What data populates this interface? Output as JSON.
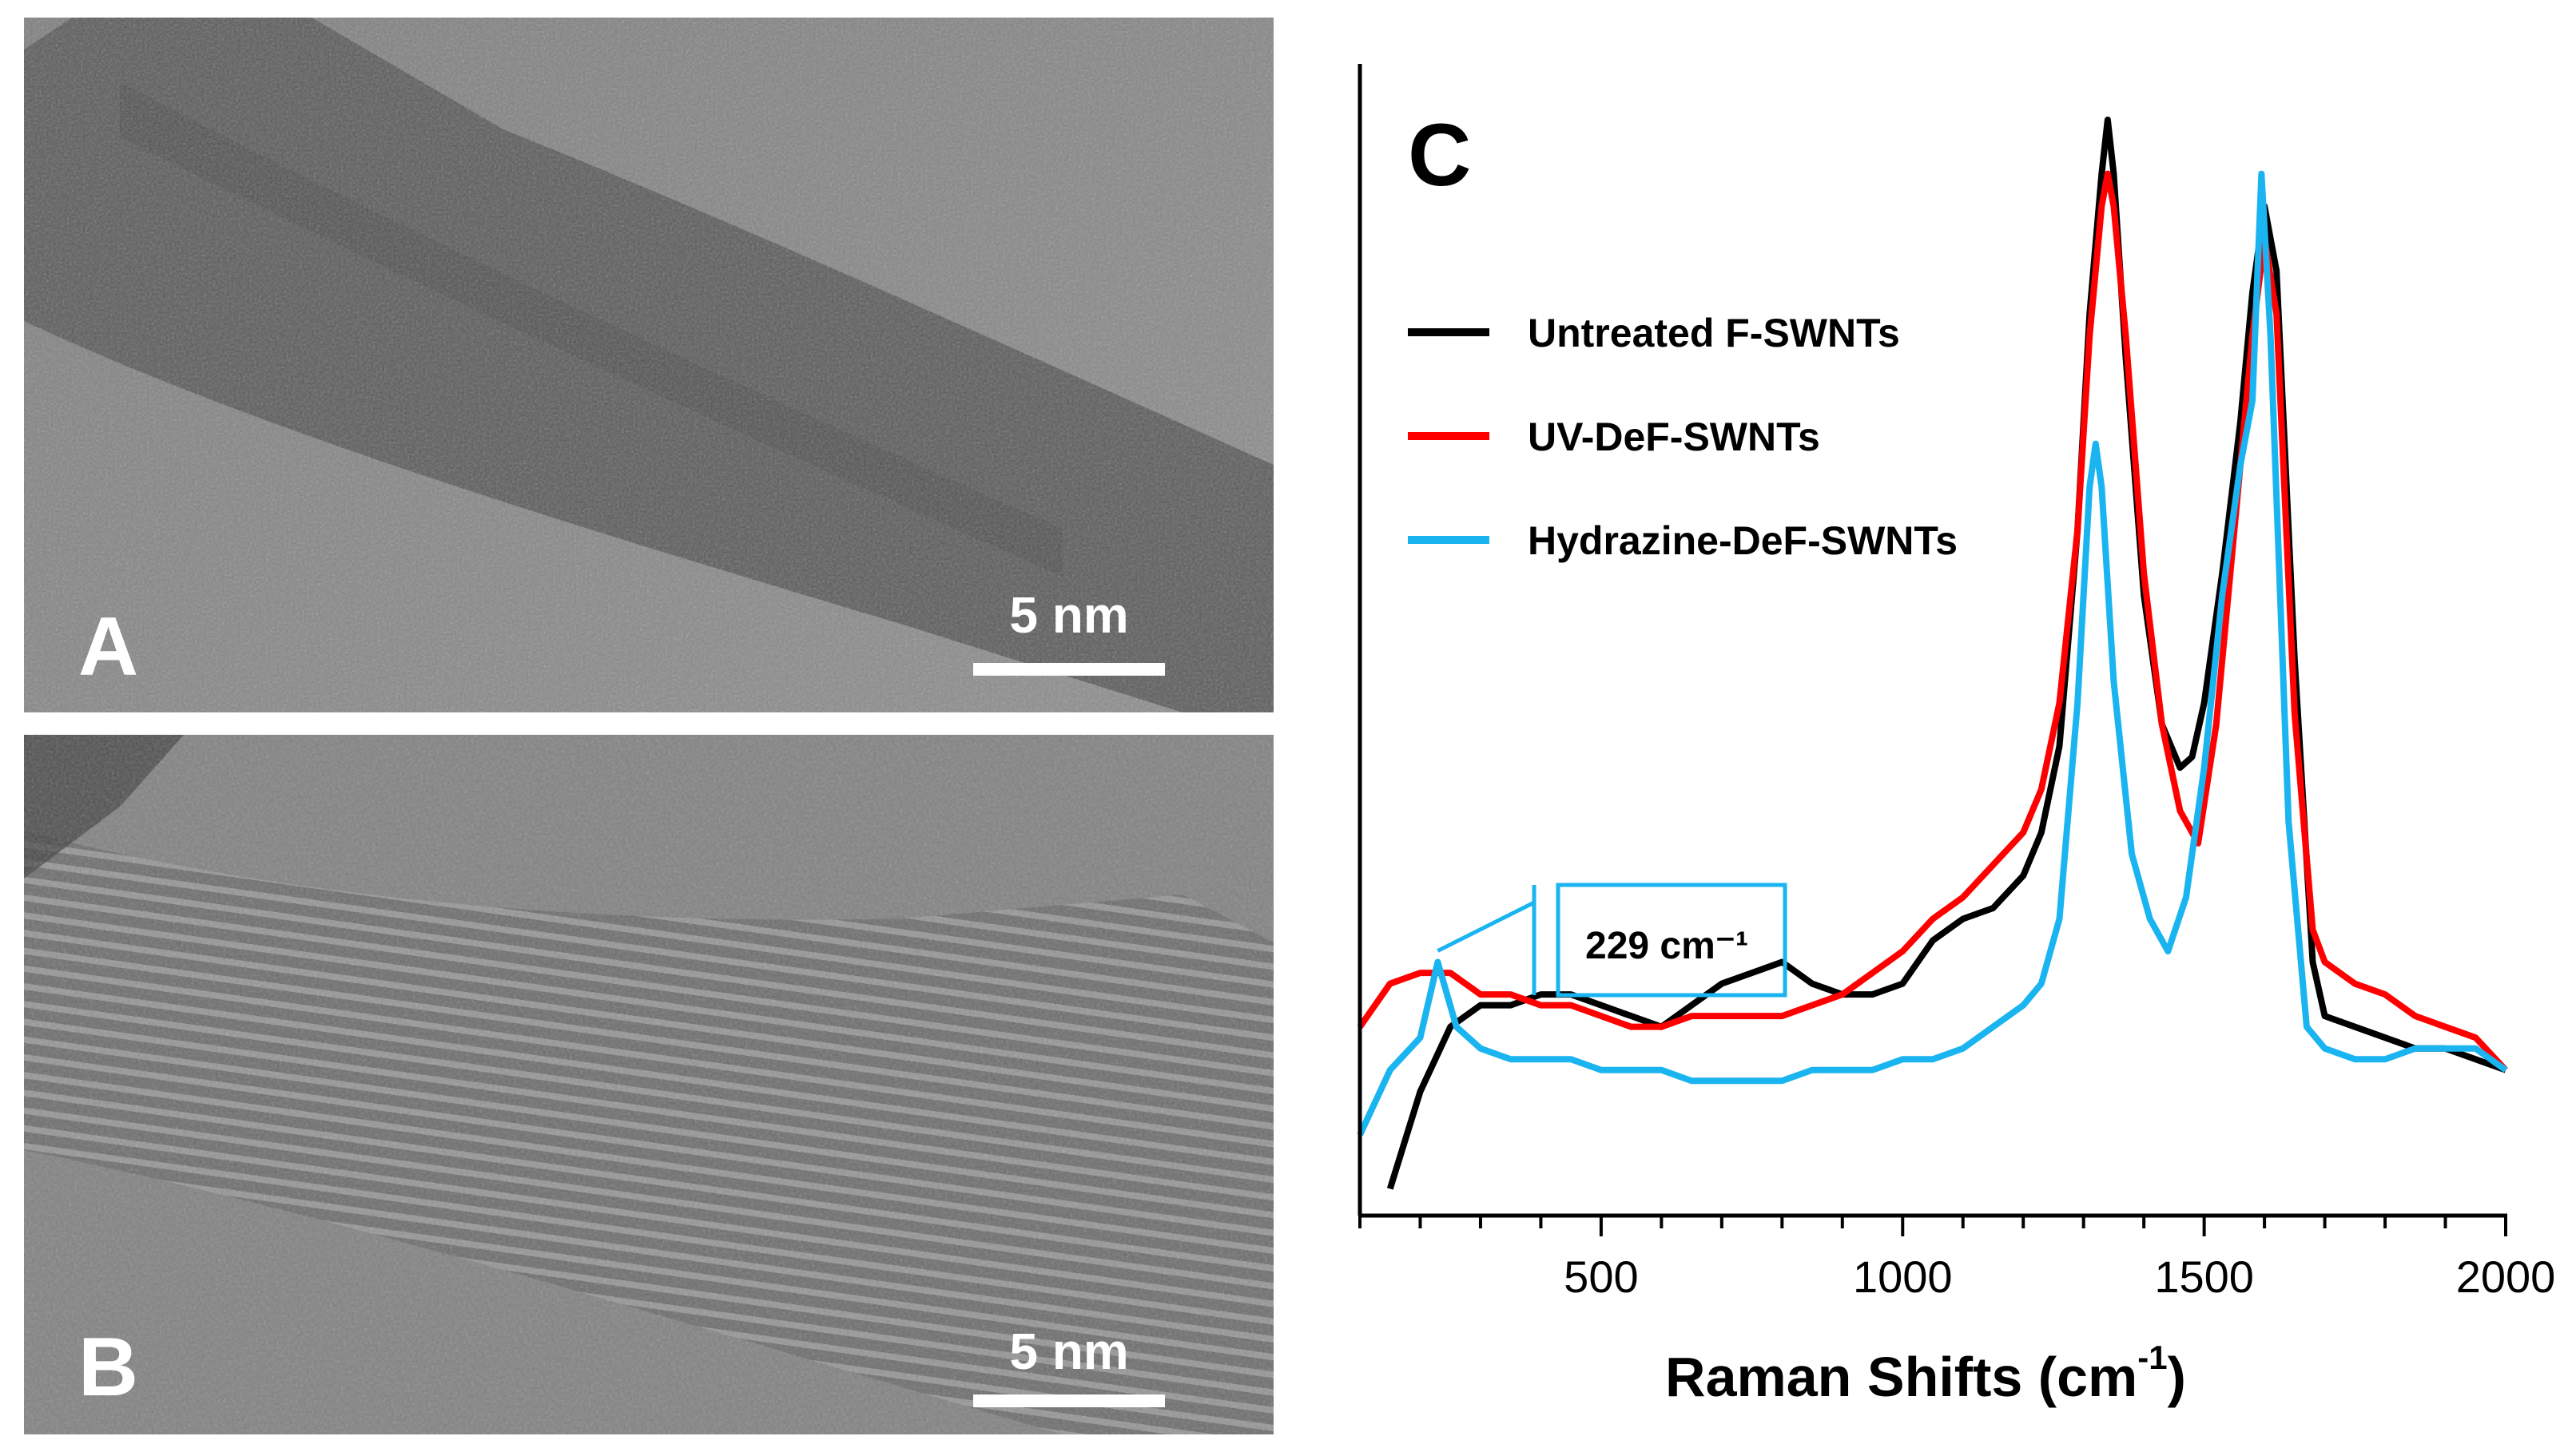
{
  "panels": {
    "a": {
      "letter": "A",
      "scale": "5 nm"
    },
    "b": {
      "letter": "B",
      "scale": "5 nm"
    }
  },
  "chart_data": {
    "type": "line",
    "panel_label": "C",
    "xlabel": "Raman Shifts (cm",
    "xlabel_sup": "-1",
    "xlabel_close": ")",
    "ylabel": "",
    "xlim": [
      100,
      2000
    ],
    "ylim": [
      0,
      1
    ],
    "xticks": [
      500,
      1000,
      1500,
      2000
    ],
    "yaxis_ticks": false,
    "grid": false,
    "legend_position": "top-left",
    "annotation": {
      "text": "229 cm⁻¹",
      "x": 229,
      "series": "Hydrazine-DeF-SWNTs"
    },
    "series": [
      {
        "name": "Untreated F-SWNTs",
        "color": "#000000",
        "x": [
          150,
          200,
          250,
          300,
          350,
          400,
          450,
          500,
          550,
          600,
          650,
          700,
          750,
          800,
          850,
          900,
          950,
          1000,
          1050,
          1100,
          1150,
          1200,
          1230,
          1260,
          1290,
          1310,
          1330,
          1340,
          1350,
          1370,
          1400,
          1430,
          1460,
          1480,
          1500,
          1530,
          1560,
          1580,
          1600,
          1620,
          1650,
          1680,
          1700,
          1750,
          1800,
          1850,
          1900,
          1950,
          2000
        ],
        "y": [
          0.01,
          0.1,
          0.16,
          0.18,
          0.18,
          0.19,
          0.19,
          0.18,
          0.17,
          0.16,
          0.18,
          0.2,
          0.21,
          0.22,
          0.2,
          0.19,
          0.19,
          0.2,
          0.24,
          0.26,
          0.27,
          0.3,
          0.34,
          0.42,
          0.62,
          0.82,
          0.95,
          1.0,
          0.95,
          0.78,
          0.56,
          0.44,
          0.4,
          0.41,
          0.46,
          0.58,
          0.72,
          0.84,
          0.92,
          0.86,
          0.5,
          0.22,
          0.17,
          0.16,
          0.15,
          0.14,
          0.14,
          0.13,
          0.12
        ]
      },
      {
        "name": "UV-DeF-SWNTs",
        "color": "#ff0000",
        "x": [
          100,
          150,
          200,
          250,
          300,
          350,
          400,
          450,
          500,
          550,
          600,
          650,
          700,
          750,
          800,
          850,
          900,
          950,
          1000,
          1050,
          1100,
          1150,
          1200,
          1230,
          1260,
          1290,
          1310,
          1330,
          1340,
          1350,
          1370,
          1400,
          1430,
          1460,
          1490,
          1520,
          1550,
          1580,
          1600,
          1620,
          1650,
          1680,
          1700,
          1750,
          1800,
          1850,
          1900,
          1950,
          2000
        ],
        "y": [
          0.16,
          0.2,
          0.21,
          0.21,
          0.19,
          0.19,
          0.18,
          0.18,
          0.17,
          0.16,
          0.16,
          0.17,
          0.17,
          0.17,
          0.17,
          0.18,
          0.19,
          0.21,
          0.23,
          0.26,
          0.28,
          0.31,
          0.34,
          0.38,
          0.46,
          0.62,
          0.8,
          0.92,
          0.95,
          0.92,
          0.8,
          0.58,
          0.44,
          0.36,
          0.33,
          0.44,
          0.62,
          0.8,
          0.89,
          0.82,
          0.45,
          0.25,
          0.22,
          0.2,
          0.19,
          0.17,
          0.16,
          0.15,
          0.12
        ]
      },
      {
        "name": "Hydrazine-DeF-SWNTs",
        "color": "#1ab4f0",
        "x": [
          100,
          150,
          200,
          229,
          260,
          300,
          350,
          400,
          450,
          500,
          550,
          600,
          650,
          700,
          750,
          800,
          850,
          900,
          950,
          1000,
          1050,
          1100,
          1150,
          1200,
          1230,
          1260,
          1290,
          1310,
          1320,
          1330,
          1350,
          1380,
          1410,
          1440,
          1470,
          1500,
          1530,
          1560,
          1580,
          1595,
          1610,
          1640,
          1670,
          1700,
          1750,
          1800,
          1850,
          1900,
          1950,
          2000
        ],
        "y": [
          0.06,
          0.12,
          0.15,
          0.22,
          0.16,
          0.14,
          0.13,
          0.13,
          0.13,
          0.12,
          0.12,
          0.12,
          0.11,
          0.11,
          0.11,
          0.11,
          0.12,
          0.12,
          0.12,
          0.13,
          0.13,
          0.14,
          0.16,
          0.18,
          0.2,
          0.26,
          0.46,
          0.66,
          0.7,
          0.66,
          0.48,
          0.32,
          0.26,
          0.23,
          0.28,
          0.4,
          0.56,
          0.68,
          0.74,
          0.95,
          0.8,
          0.35,
          0.16,
          0.14,
          0.13,
          0.13,
          0.14,
          0.14,
          0.14,
          0.12
        ]
      }
    ]
  }
}
